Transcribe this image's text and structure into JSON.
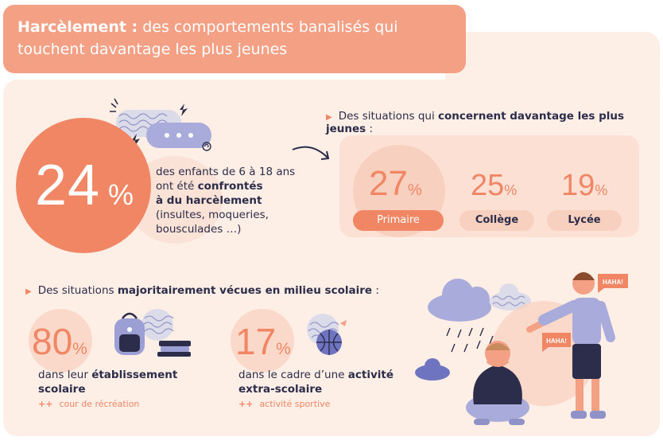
{
  "header": {
    "title_bold": "Harcèlement :",
    "title_rest": " des comportements banalisés qui touchent davantage les plus jeunes"
  },
  "headline_stat": {
    "value": "24",
    "unit": "%",
    "line1": "des enfants de 6 à 18 ans",
    "line2_pre": "ont été ",
    "line2_bold": "confrontés",
    "line3_bold": "à du harcèlement",
    "line4": "(insultes, moqueries,",
    "line5": "bousculades …)"
  },
  "levels_section": {
    "heading_pre": "Des situations qui ",
    "heading_bold": "concernent davantage les plus jeunes",
    "heading_post": " :",
    "levels": [
      {
        "value": "27",
        "unit": "%",
        "label": "Primaire"
      },
      {
        "value": "25",
        "unit": "%",
        "label": "Collège"
      },
      {
        "value": "19",
        "unit": "%",
        "label": "Lycée"
      }
    ]
  },
  "school_section": {
    "heading_pre": "Des situations ",
    "heading_bold": "majoritairement vécues en milieu scolaire",
    "heading_post": " :",
    "stats": [
      {
        "value": "80",
        "unit": "%",
        "text_pre": "dans leur ",
        "text_bold1": "établissement",
        "text_bold2": "scolaire",
        "plus": "++",
        "sub": "cour de récréation"
      },
      {
        "value": "17",
        "unit": "%",
        "text_pre": "dans le cadre d’une ",
        "text_bold1": "activité",
        "text_bold2": "extra-scolaire",
        "plus": "++",
        "sub": "activité sportive"
      }
    ]
  },
  "illustration": {
    "bubble1": "HAHA!",
    "bubble2": "HAHA!"
  },
  "colors": {
    "accent": "#f08664",
    "title_bg": "#f4a084",
    "panel_bg": "#fdeee6",
    "text": "#2c2d4a"
  }
}
